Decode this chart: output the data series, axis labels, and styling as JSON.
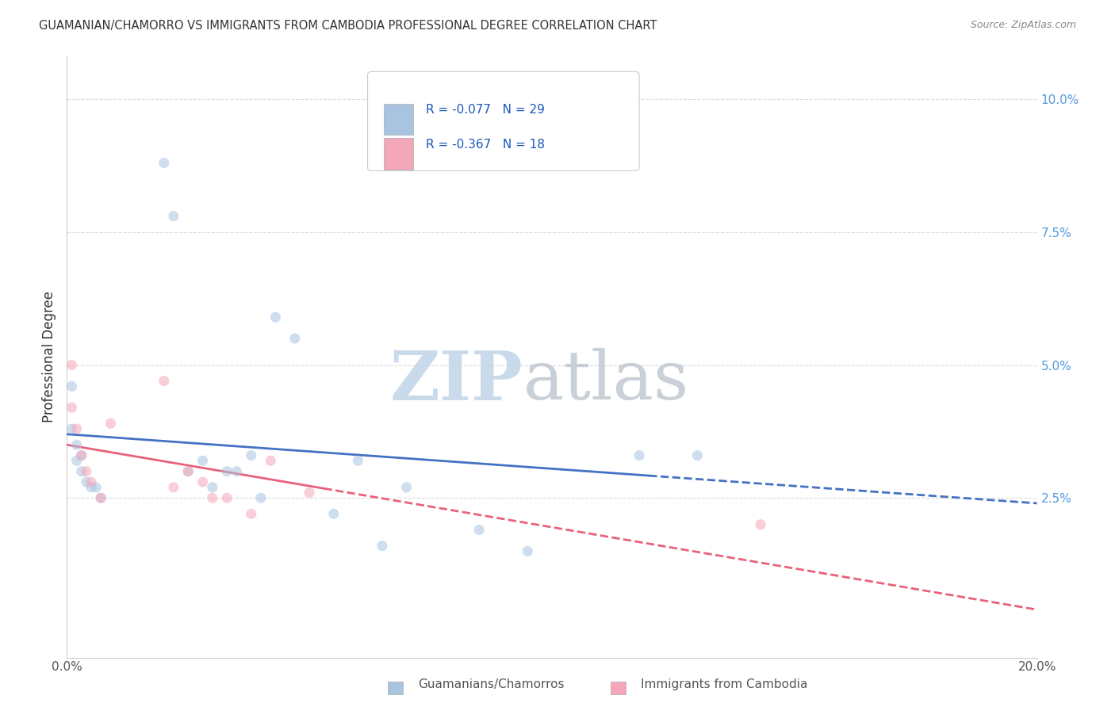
{
  "title": "GUAMANIAN/CHAMORRO VS IMMIGRANTS FROM CAMBODIA PROFESSIONAL DEGREE CORRELATION CHART",
  "source": "Source: ZipAtlas.com",
  "ylabel": "Professional Degree",
  "xlim": [
    0.0,
    0.2
  ],
  "ylim": [
    -0.005,
    0.108
  ],
  "xticks": [
    0.0,
    0.05,
    0.1,
    0.15,
    0.2
  ],
  "xtick_labels": [
    "0.0%",
    "",
    "",
    "",
    "20.0%"
  ],
  "yticks_right": [
    0.0,
    0.025,
    0.05,
    0.075,
    0.1
  ],
  "ytick_labels_right": [
    "",
    "2.5%",
    "5.0%",
    "7.5%",
    "10.0%"
  ],
  "series1_label": "Guamanians/Chamorros",
  "series1_color": "#a8c4e0",
  "series1_line_color": "#4472c4",
  "series1_R": "-0.077",
  "series1_N": "29",
  "series2_label": "Immigrants from Cambodia",
  "series2_color": "#f4a7b9",
  "series2_line_color": "#e8627a",
  "series2_R": "-0.367",
  "series2_N": "18",
  "legend_R_color": "#1a56bb",
  "background_color": "#ffffff",
  "grid_color": "#cccccc",
  "series1_x": [
    0.001,
    0.001,
    0.002,
    0.002,
    0.003,
    0.003,
    0.004,
    0.005,
    0.006,
    0.007,
    0.02,
    0.022,
    0.025,
    0.028,
    0.03,
    0.033,
    0.035,
    0.038,
    0.04,
    0.043,
    0.047,
    0.055,
    0.06,
    0.065,
    0.07,
    0.085,
    0.095,
    0.118,
    0.13
  ],
  "series1_y": [
    0.046,
    0.038,
    0.035,
    0.032,
    0.033,
    0.03,
    0.028,
    0.027,
    0.027,
    0.025,
    0.088,
    0.078,
    0.03,
    0.032,
    0.027,
    0.03,
    0.03,
    0.033,
    0.025,
    0.059,
    0.055,
    0.022,
    0.032,
    0.016,
    0.027,
    0.019,
    0.015,
    0.033,
    0.033
  ],
  "series2_x": [
    0.001,
    0.001,
    0.002,
    0.003,
    0.004,
    0.005,
    0.007,
    0.009,
    0.02,
    0.022,
    0.025,
    0.028,
    0.03,
    0.033,
    0.038,
    0.042,
    0.05,
    0.143
  ],
  "series2_y": [
    0.05,
    0.042,
    0.038,
    0.033,
    0.03,
    0.028,
    0.025,
    0.039,
    0.047,
    0.027,
    0.03,
    0.028,
    0.025,
    0.025,
    0.022,
    0.032,
    0.026,
    0.02
  ],
  "trendline1_solid_end": 0.12,
  "trendline2_solid_end": 0.053,
  "marker_size": 90,
  "marker_alpha": 0.55,
  "watermark_zip": "ZIP",
  "watermark_atlas": "atlas",
  "watermark_color_zip": "#c0d4e8",
  "watermark_color_atlas": "#c0c8d0"
}
